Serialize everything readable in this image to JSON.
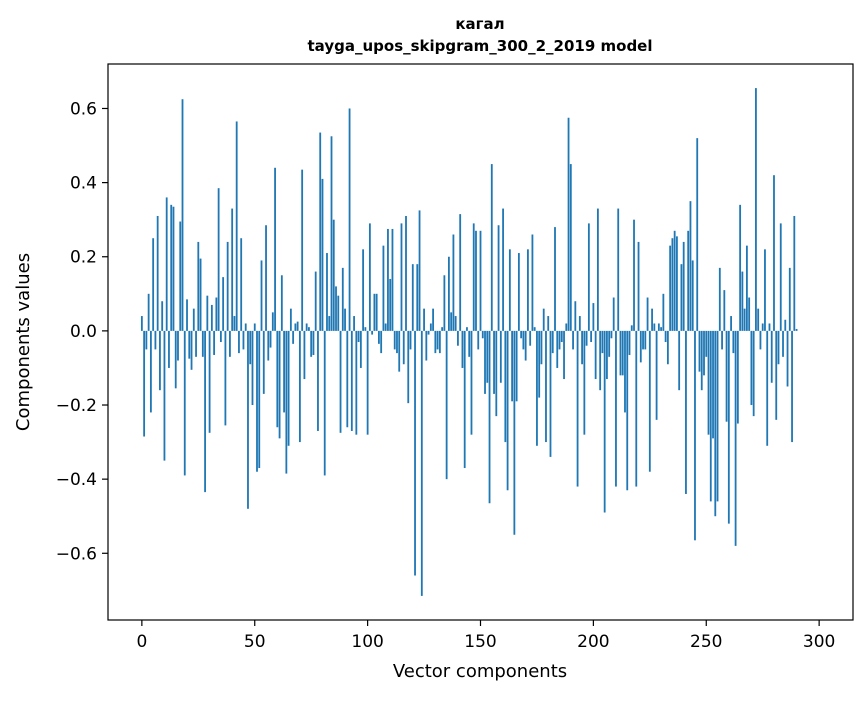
{
  "chart_data": {
    "type": "bar",
    "title": "кагал",
    "subtitle": "tayga_upos_skipgram_300_2_2019 model",
    "xlabel": "Vector components",
    "ylabel": "Components values",
    "xlim": [
      -15,
      315
    ],
    "ylim": [
      -0.78,
      0.72
    ],
    "xticks": [
      0,
      50,
      100,
      150,
      200,
      250,
      300
    ],
    "xtick_labels": [
      "0",
      "50",
      "100",
      "150",
      "200",
      "250",
      "300"
    ],
    "yticks": [
      -0.6,
      -0.4,
      -0.2,
      0.0,
      0.2,
      0.4,
      0.6
    ],
    "ytick_labels": [
      "−0.6",
      "−0.4",
      "−0.2",
      "0.0",
      "0.2",
      "0.4",
      "0.6"
    ],
    "grid": false,
    "series": [
      {
        "name": "кагал",
        "color": "#1f77b4",
        "x_start": 0,
        "values": [
          0.04,
          -0.285,
          -0.05,
          0.1,
          -0.22,
          0.25,
          -0.05,
          0.31,
          -0.16,
          0.08,
          -0.35,
          0.36,
          -0.1,
          0.34,
          0.335,
          -0.155,
          -0.08,
          0.295,
          0.625,
          -0.39,
          0.085,
          -0.075,
          -0.105,
          0.06,
          -0.07,
          0.24,
          0.195,
          -0.07,
          -0.435,
          0.095,
          -0.275,
          0.07,
          -0.065,
          0.09,
          0.385,
          -0.03,
          0.145,
          -0.255,
          0.24,
          -0.07,
          0.33,
          0.04,
          0.565,
          -0.06,
          0.25,
          -0.05,
          0.02,
          -0.48,
          -0.09,
          -0.2,
          0.02,
          -0.38,
          -0.37,
          0.19,
          -0.17,
          0.285,
          -0.08,
          -0.045,
          0.05,
          0.44,
          -0.26,
          -0.29,
          0.15,
          -0.22,
          -0.385,
          -0.31,
          0.06,
          -0.035,
          0.02,
          0.025,
          -0.3,
          0.435,
          -0.13,
          0.02,
          0.01,
          -0.07,
          -0.065,
          0.16,
          -0.27,
          0.535,
          0.41,
          -0.39,
          0.21,
          0.04,
          0.525,
          0.3,
          0.12,
          0.095,
          -0.275,
          0.17,
          0.06,
          -0.26,
          0.6,
          -0.27,
          0.04,
          -0.28,
          -0.03,
          -0.1,
          0.22,
          0.01,
          -0.28,
          0.29,
          -0.01,
          0.1,
          0.1,
          -0.035,
          -0.06,
          0.23,
          0.02,
          0.275,
          0.14,
          0.275,
          -0.05,
          -0.06,
          -0.11,
          0.29,
          -0.09,
          0.31,
          -0.195,
          -0.05,
          0.18,
          -0.66,
          0.18,
          0.325,
          -0.715,
          0.06,
          -0.08,
          -0.01,
          0.02,
          0.06,
          -0.06,
          -0.05,
          -0.06,
          0.01,
          0.15,
          -0.4,
          0.2,
          0.05,
          0.26,
          0.04,
          -0.04,
          0.315,
          -0.1,
          -0.37,
          0.01,
          -0.07,
          -0.28,
          0.29,
          0.27,
          -0.05,
          0.27,
          -0.02,
          -0.17,
          -0.14,
          -0.465,
          0.45,
          -0.17,
          -0.23,
          0.285,
          -0.14,
          0.33,
          -0.3,
          -0.43,
          0.22,
          -0.19,
          -0.55,
          -0.19,
          0.21,
          -0.02,
          -0.05,
          -0.08,
          0.22,
          -0.04,
          0.26,
          0.01,
          -0.31,
          -0.18,
          -0.09,
          0.06,
          -0.3,
          0.04,
          -0.34,
          -0.06,
          0.28,
          -0.1,
          -0.05,
          -0.03,
          -0.13,
          0.02,
          0.575,
          0.45,
          -0.05,
          0.08,
          -0.42,
          0.04,
          -0.09,
          -0.28,
          -0.04,
          0.29,
          -0.03,
          0.075,
          -0.13,
          0.33,
          -0.16,
          -0.06,
          -0.49,
          -0.13,
          -0.07,
          -0.02,
          0.09,
          -0.42,
          0.33,
          -0.12,
          -0.12,
          -0.22,
          -0.43,
          -0.065,
          0.015,
          0.3,
          -0.42,
          0.24,
          -0.085,
          -0.05,
          -0.05,
          0.09,
          -0.38,
          0.06,
          0.02,
          -0.24,
          0.02,
          0.01,
          0.1,
          -0.03,
          -0.09,
          0.23,
          0.25,
          0.27,
          0.255,
          -0.16,
          0.18,
          0.24,
          -0.44,
          0.27,
          0.35,
          0.19,
          -0.565,
          0.52,
          -0.11,
          -0.16,
          -0.12,
          -0.07,
          -0.28,
          -0.46,
          -0.29,
          -0.5,
          -0.46,
          0.17,
          -0.05,
          0.11,
          -0.245,
          -0.52,
          0.04,
          -0.06,
          -0.58,
          -0.25,
          0.34,
          0.16,
          0.06,
          0.23,
          0.09,
          -0.2,
          -0.23,
          0.655,
          0.06,
          -0.05,
          0.02,
          0.22,
          -0.31,
          0.02,
          -0.14,
          0.42,
          -0.24,
          -0.09,
          0.29,
          -0.07,
          0.03,
          -0.15,
          0.17,
          -0.3,
          0.31,
          0.005
        ]
      }
    ]
  }
}
